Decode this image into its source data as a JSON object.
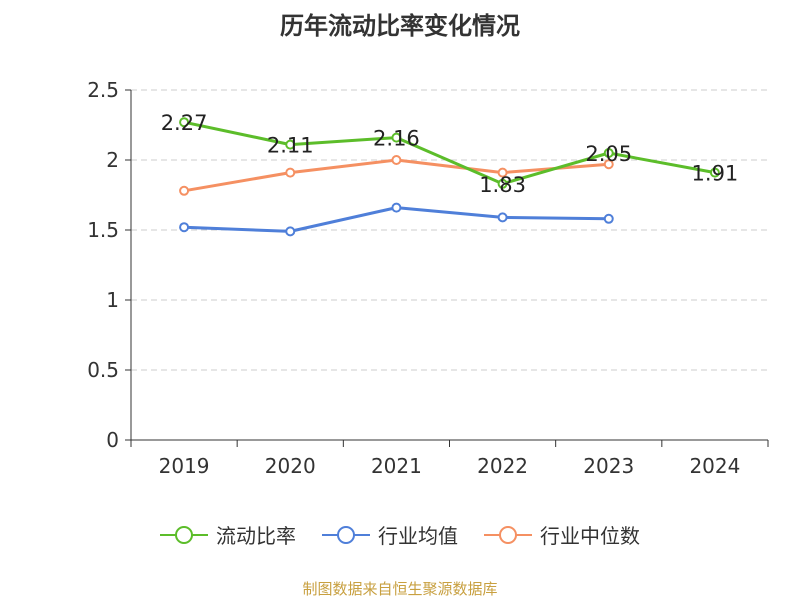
{
  "chart_data": {
    "type": "line",
    "title": "历年流动比率变化情况",
    "categories": [
      "2019",
      "2020",
      "2021",
      "2022",
      "2023",
      "2024"
    ],
    "ylim": [
      0,
      2.5
    ],
    "yticks": [
      "0",
      "0.5",
      "1",
      "1.5",
      "2",
      "2.5"
    ],
    "grid": true,
    "legend_position": "bottom",
    "series": [
      {
        "name": "流动比率",
        "color": "#5cbd2a",
        "values": [
          2.27,
          2.11,
          2.16,
          1.83,
          2.05,
          1.91
        ],
        "labels": [
          "2.27",
          "2.11",
          "2.16",
          "1.83",
          "2.05",
          "1.91"
        ]
      },
      {
        "name": "行业均值",
        "color": "#4f7fd9",
        "values": [
          1.52,
          1.49,
          1.66,
          1.59,
          1.58,
          null
        ]
      },
      {
        "name": "行业中位数",
        "color": "#f59062",
        "values": [
          1.78,
          1.91,
          2.0,
          1.91,
          1.97,
          null
        ]
      }
    ]
  },
  "source": "制图数据来自恒生聚源数据库"
}
